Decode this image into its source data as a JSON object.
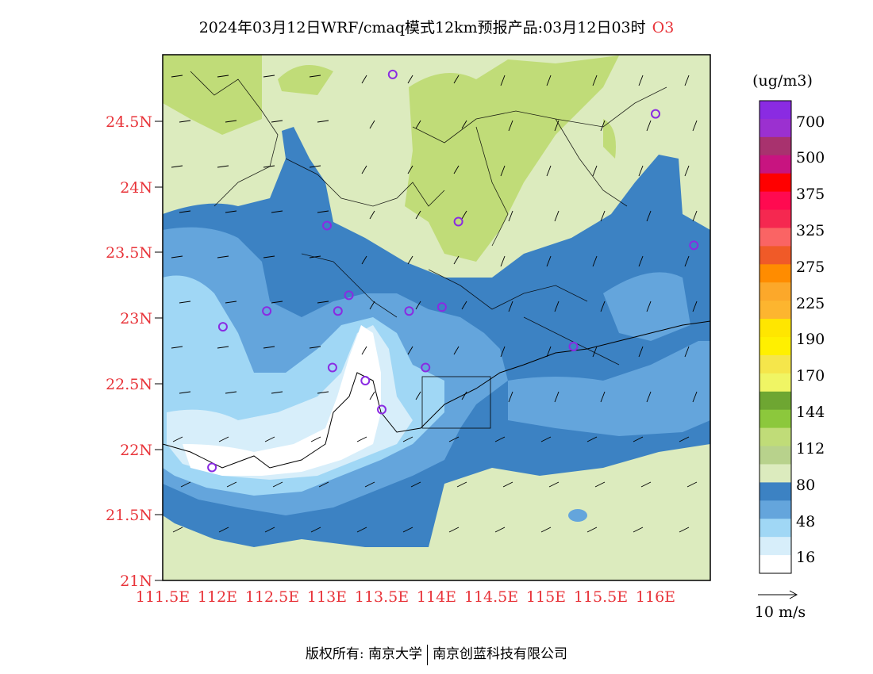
{
  "title": {
    "main": "2024年03月12日WRF/cmaq模式12km预报产品:03月12日03时",
    "species": "O3"
  },
  "footer": {
    "left": "版权所有: 南京大学",
    "right": "南京创蓝科技有限公司"
  },
  "map": {
    "lat_labels": [
      "24.5N",
      "24N",
      "23.5N",
      "23N",
      "22.5N",
      "22N",
      "21.5N",
      "21N"
    ],
    "lon_labels": [
      "111.5E",
      "112E",
      "112.5E",
      "113E",
      "113.5E",
      "114E",
      "114.5E",
      "115E",
      "115.5E",
      "116E"
    ],
    "lon_range": [
      111.5,
      116.5
    ],
    "lat_range": [
      21.0,
      25.0
    ]
  },
  "colorbar": {
    "unit": "(ug/m3)",
    "labels": [
      "700",
      "500",
      "375",
      "325",
      "275",
      "225",
      "190",
      "170",
      "144",
      "112",
      "80",
      "48",
      "16"
    ],
    "colors": [
      "#8a2be2",
      "#9b30d0",
      "#a8326e",
      "#c81480",
      "#ff0000",
      "#ff0a50",
      "#f52850",
      "#fa6464",
      "#f05a28",
      "#ff8c00",
      "#fca82a",
      "#fdb52f",
      "#ffe600",
      "#fff000",
      "#f5e64b",
      "#f0f564",
      "#6ea632",
      "#8cc83c",
      "#c0dc78",
      "#b8d28c",
      "#dcebbe",
      "#3c82c3",
      "#64a5dc",
      "#a0d7f5",
      "#d7eefa",
      "#ffffff"
    ]
  },
  "legend": {
    "wind_ref": "10 m/s"
  },
  "stations": [
    {
      "lon": 113.6,
      "lat": 24.85
    },
    {
      "lon": 116.0,
      "lat": 24.55
    },
    {
      "lon": 113.0,
      "lat": 23.7
    },
    {
      "lon": 114.2,
      "lat": 23.73
    },
    {
      "lon": 116.35,
      "lat": 23.55
    },
    {
      "lon": 112.45,
      "lat": 23.05
    },
    {
      "lon": 112.05,
      "lat": 22.93
    },
    {
      "lon": 113.1,
      "lat": 23.05
    },
    {
      "lon": 113.2,
      "lat": 23.17
    },
    {
      "lon": 113.75,
      "lat": 23.05
    },
    {
      "lon": 114.05,
      "lat": 23.08
    },
    {
      "lon": 115.25,
      "lat": 22.78
    },
    {
      "lon": 113.05,
      "lat": 22.62
    },
    {
      "lon": 113.35,
      "lat": 22.52
    },
    {
      "lon": 113.9,
      "lat": 22.62
    },
    {
      "lon": 113.5,
      "lat": 22.3
    },
    {
      "lon": 111.95,
      "lat": 21.86
    }
  ]
}
